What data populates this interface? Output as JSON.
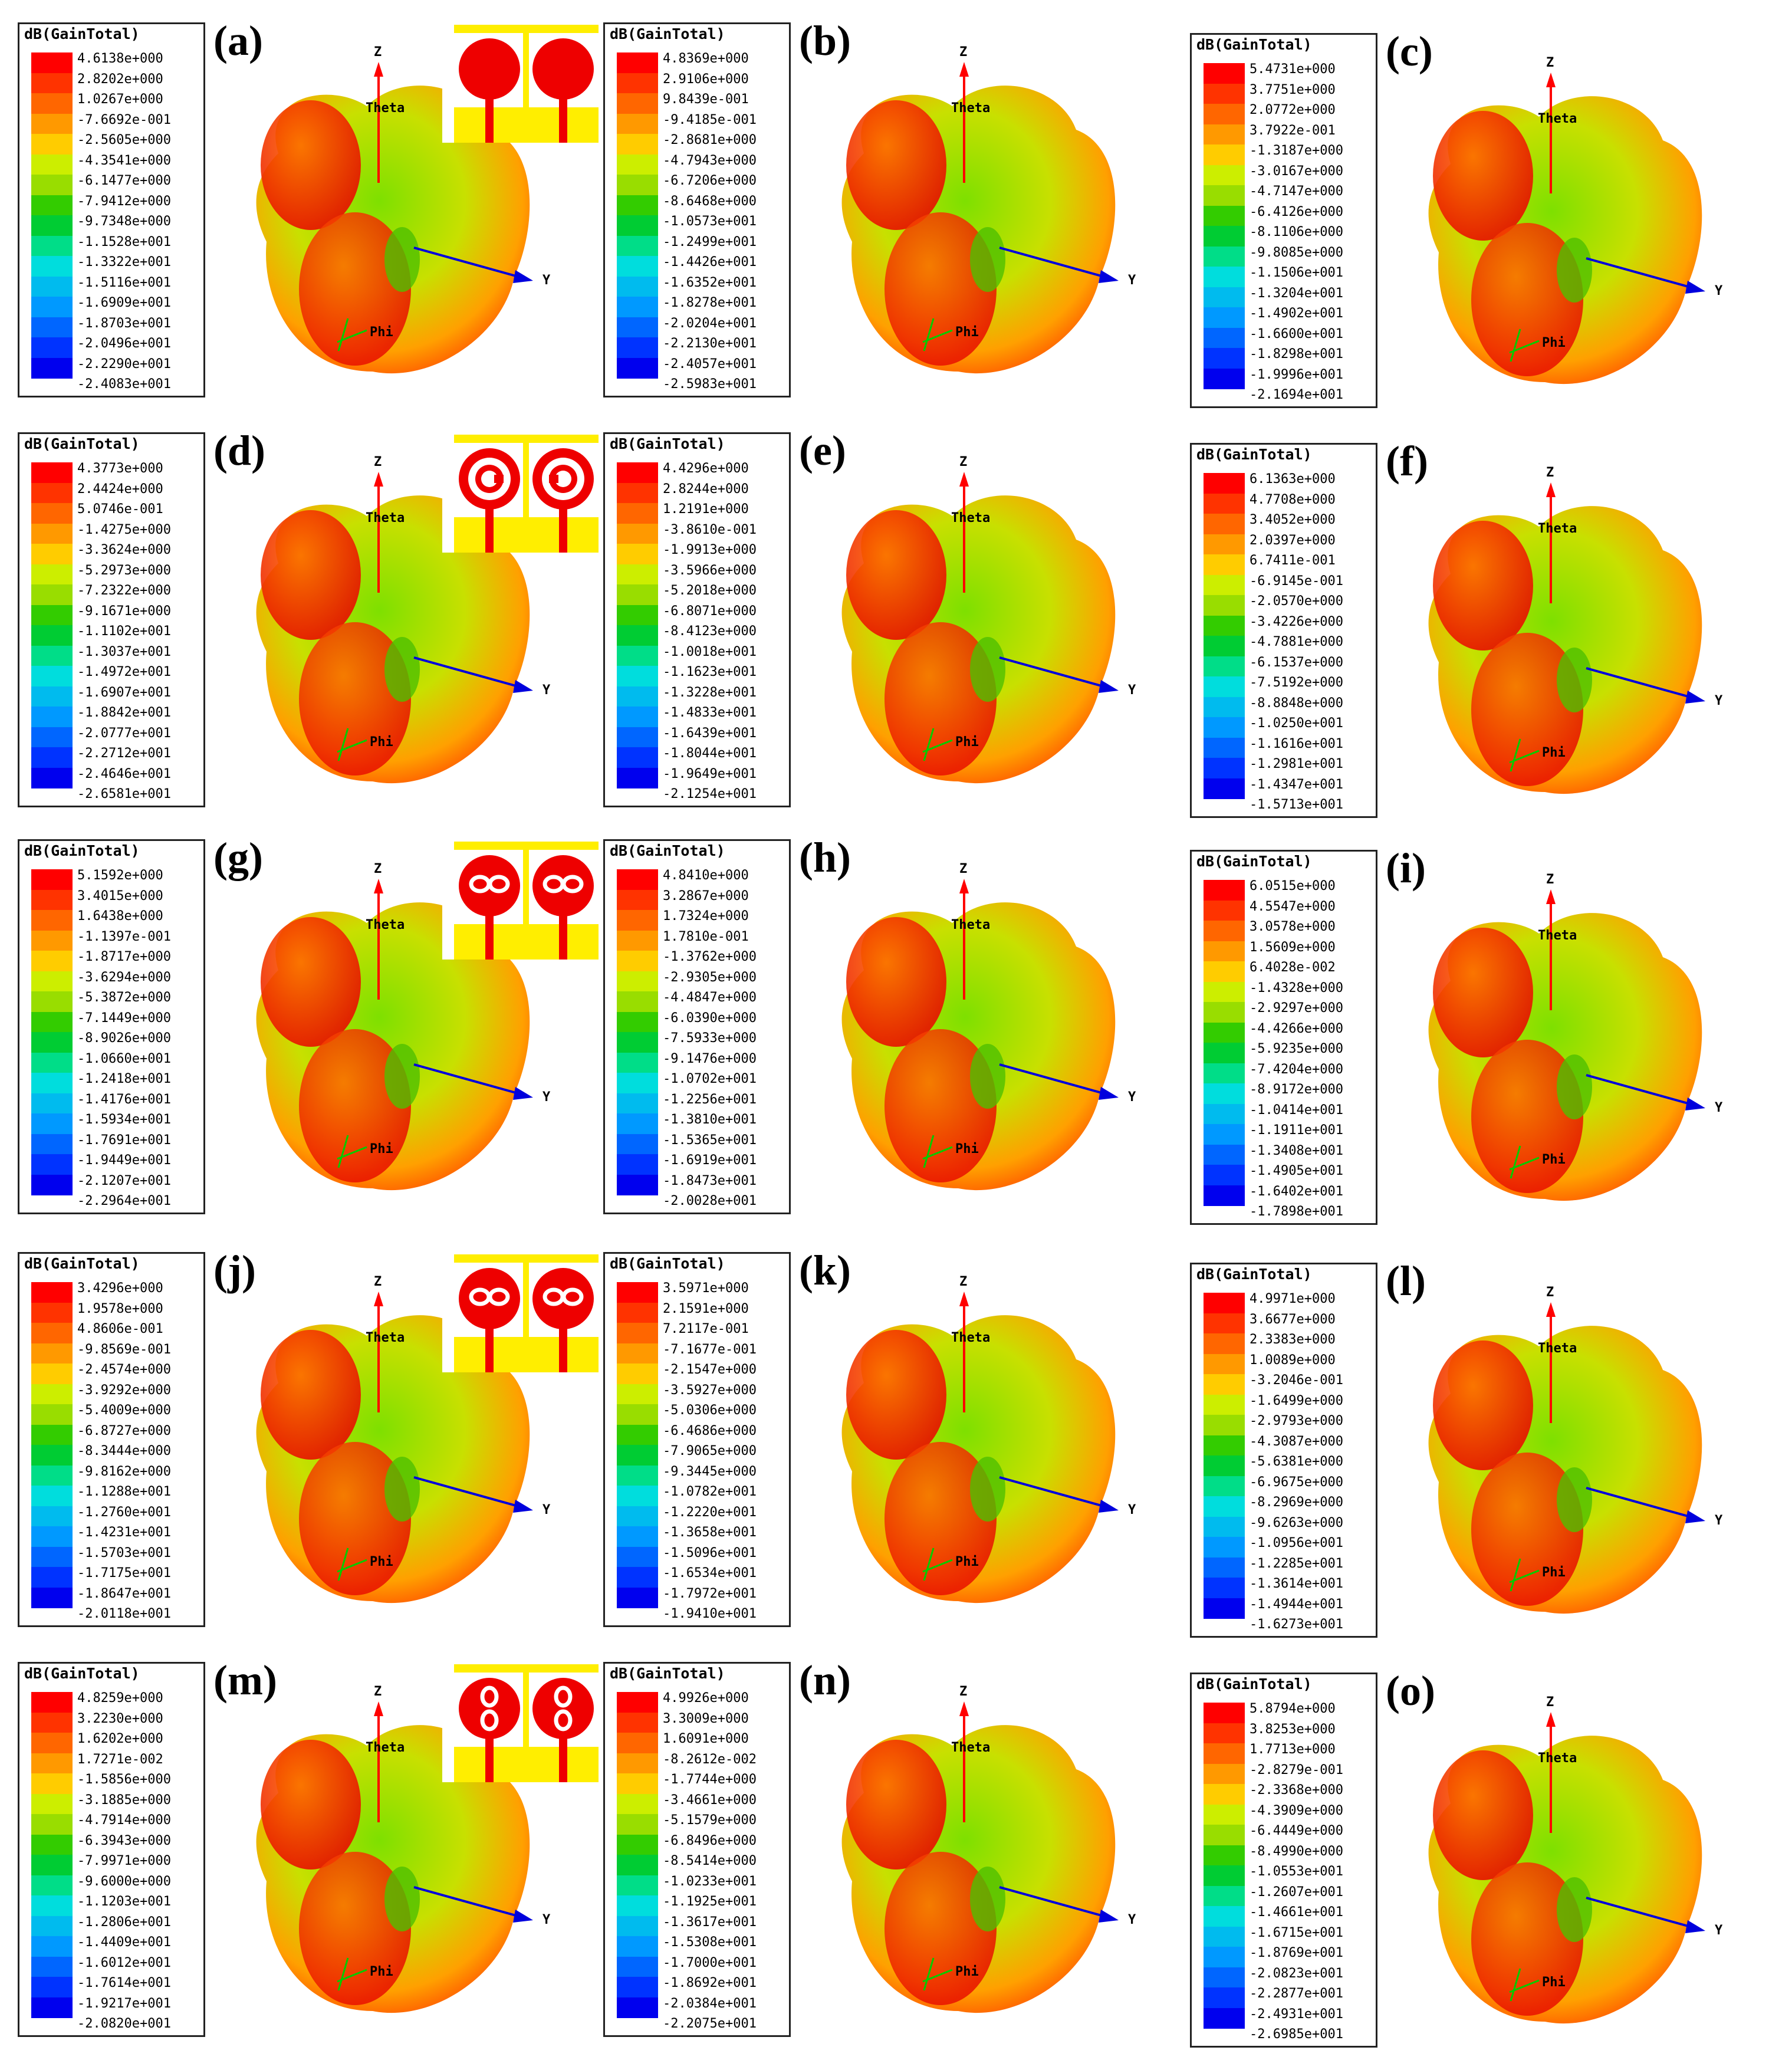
{
  "legend_title": "dB(GainTotal)",
  "axes": {
    "z": "Z",
    "y": "Y",
    "theta": "Theta",
    "phi": "Phi"
  },
  "scale_colors": [
    "#ff0000",
    "#ff3300",
    "#ff6600",
    "#ff9900",
    "#ffcc00",
    "#ccee00",
    "#99dd00",
    "#33cc00",
    "#00cc33",
    "#00dd88",
    "#00dddd",
    "#00bbee",
    "#0099ff",
    "#0066ff",
    "#0033ff",
    "#0000ee"
  ],
  "panels": [
    {
      "label": "(a)",
      "pattern": "circle",
      "values": [
        "4.6138e+000",
        "2.8202e+000",
        "1.0267e+000",
        "-7.6692e-001",
        "-2.5605e+000",
        "-4.3541e+000",
        "-6.1477e+000",
        "-7.9412e+000",
        "-9.7348e+000",
        "-1.1528e+001",
        "-1.3322e+001",
        "-1.5116e+001",
        "-1.6909e+001",
        "-1.8703e+001",
        "-2.0496e+001",
        "-2.2290e+001",
        "-2.4083e+001"
      ]
    },
    {
      "label": "(b)",
      "pattern": "",
      "values": [
        "4.8369e+000",
        "2.9106e+000",
        "9.8439e-001",
        "-9.4185e-001",
        "-2.8681e+000",
        "-4.7943e+000",
        "-6.7206e+000",
        "-8.6468e+000",
        "-1.0573e+001",
        "-1.2499e+001",
        "-1.4426e+001",
        "-1.6352e+001",
        "-1.8278e+001",
        "-2.0204e+001",
        "-2.2130e+001",
        "-2.4057e+001",
        "-2.5983e+001"
      ]
    },
    {
      "label": "(c)",
      "pattern": "",
      "values": [
        "5.4731e+000",
        "3.7751e+000",
        "2.0772e+000",
        "3.7922e-001",
        "-1.3187e+000",
        "-3.0167e+000",
        "-4.7147e+000",
        "-6.4126e+000",
        "-8.1106e+000",
        "-9.8085e+000",
        "-1.1506e+001",
        "-1.3204e+001",
        "-1.4902e+001",
        "-1.6600e+001",
        "-1.8298e+001",
        "-1.9996e+001",
        "-2.1694e+001"
      ]
    },
    {
      "label": "(d)",
      "pattern": "ring",
      "values": [
        "4.3773e+000",
        "2.4424e+000",
        "5.0746e-001",
        "-1.4275e+000",
        "-3.3624e+000",
        "-5.2973e+000",
        "-7.2322e+000",
        "-9.1671e+000",
        "-1.1102e+001",
        "-1.3037e+001",
        "-1.4972e+001",
        "-1.6907e+001",
        "-1.8842e+001",
        "-2.0777e+001",
        "-2.2712e+001",
        "-2.4646e+001",
        "-2.6581e+001"
      ]
    },
    {
      "label": "(e)",
      "pattern": "",
      "values": [
        "4.4296e+000",
        "2.8244e+000",
        "1.2191e+000",
        "-3.8610e-001",
        "-1.9913e+000",
        "-3.5966e+000",
        "-5.2018e+000",
        "-6.8071e+000",
        "-8.4123e+000",
        "-1.0018e+001",
        "-1.1623e+001",
        "-1.3228e+001",
        "-1.4833e+001",
        "-1.6439e+001",
        "-1.8044e+001",
        "-1.9649e+001",
        "-2.1254e+001"
      ]
    },
    {
      "label": "(f)",
      "pattern": "",
      "values": [
        "6.1363e+000",
        "4.7708e+000",
        "3.4052e+000",
        "2.0397e+000",
        "6.7411e-001",
        "-6.9145e-001",
        "-2.0570e+000",
        "-3.4226e+000",
        "-4.7881e+000",
        "-6.1537e+000",
        "-7.5192e+000",
        "-8.8848e+000",
        "-1.0250e+001",
        "-1.1616e+001",
        "-1.2981e+001",
        "-1.4347e+001",
        "-1.5713e+001"
      ]
    },
    {
      "label": "(g)",
      "pattern": "slot",
      "values": [
        "5.1592e+000",
        "3.4015e+000",
        "1.6438e+000",
        "-1.1397e-001",
        "-1.8717e+000",
        "-3.6294e+000",
        "-5.3872e+000",
        "-7.1449e+000",
        "-8.9026e+000",
        "-1.0660e+001",
        "-1.2418e+001",
        "-1.4176e+001",
        "-1.5934e+001",
        "-1.7691e+001",
        "-1.9449e+001",
        "-2.1207e+001",
        "-2.2964e+001"
      ]
    },
    {
      "label": "(h)",
      "pattern": "",
      "values": [
        "4.8410e+000",
        "3.2867e+000",
        "1.7324e+000",
        "1.7810e-001",
        "-1.3762e+000",
        "-2.9305e+000",
        "-4.4847e+000",
        "-6.0390e+000",
        "-7.5933e+000",
        "-9.1476e+000",
        "-1.0702e+001",
        "-1.2256e+001",
        "-1.3810e+001",
        "-1.5365e+001",
        "-1.6919e+001",
        "-1.8473e+001",
        "-2.0028e+001"
      ]
    },
    {
      "label": "(i)",
      "pattern": "",
      "values": [
        "6.0515e+000",
        "4.5547e+000",
        "3.0578e+000",
        "1.5609e+000",
        "6.4028e-002",
        "-1.4328e+000",
        "-2.9297e+000",
        "-4.4266e+000",
        "-5.9235e+000",
        "-7.4204e+000",
        "-8.9172e+000",
        "-1.0414e+001",
        "-1.1911e+001",
        "-1.3408e+001",
        "-1.4905e+001",
        "-1.6402e+001",
        "-1.7898e+001"
      ]
    },
    {
      "label": "(j)",
      "pattern": "slotgap",
      "values": [
        "3.4296e+000",
        "1.9578e+000",
        "4.8606e-001",
        "-9.8569e-001",
        "-2.4574e+000",
        "-3.9292e+000",
        "-5.4009e+000",
        "-6.8727e+000",
        "-8.3444e+000",
        "-9.8162e+000",
        "-1.1288e+001",
        "-1.2760e+001",
        "-1.4231e+001",
        "-1.5703e+001",
        "-1.7175e+001",
        "-1.8647e+001",
        "-2.0118e+001"
      ]
    },
    {
      "label": "(k)",
      "pattern": "",
      "values": [
        "3.5971e+000",
        "2.1591e+000",
        "7.2117e-001",
        "-7.1677e-001",
        "-2.1547e+000",
        "-3.5927e+000",
        "-5.0306e+000",
        "-6.4686e+000",
        "-7.9065e+000",
        "-9.3445e+000",
        "-1.0782e+001",
        "-1.2220e+001",
        "-1.3658e+001",
        "-1.5096e+001",
        "-1.6534e+001",
        "-1.7972e+001",
        "-1.9410e+001"
      ]
    },
    {
      "label": "(l)",
      "pattern": "",
      "values": [
        "4.9971e+000",
        "3.6677e+000",
        "2.3383e+000",
        "1.0089e+000",
        "-3.2046e-001",
        "-1.6499e+000",
        "-2.9793e+000",
        "-4.3087e+000",
        "-5.6381e+000",
        "-6.9675e+000",
        "-8.2969e+000",
        "-9.6263e+000",
        "-1.0956e+001",
        "-1.2285e+001",
        "-1.3614e+001",
        "-1.4944e+001",
        "-1.6273e+001"
      ]
    },
    {
      "label": "(m)",
      "pattern": "vslot",
      "values": [
        "4.8259e+000",
        "3.2230e+000",
        "1.6202e+000",
        "1.7271e-002",
        "-1.5856e+000",
        "-3.1885e+000",
        "-4.7914e+000",
        "-6.3943e+000",
        "-7.9971e+000",
        "-9.6000e+000",
        "-1.1203e+001",
        "-1.2806e+001",
        "-1.4409e+001",
        "-1.6012e+001",
        "-1.7614e+001",
        "-1.9217e+001",
        "-2.0820e+001"
      ]
    },
    {
      "label": "(n)",
      "pattern": "",
      "values": [
        "4.9926e+000",
        "3.3009e+000",
        "1.6091e+000",
        "-8.2612e-002",
        "-1.7744e+000",
        "-3.4661e+000",
        "-5.1579e+000",
        "-6.8496e+000",
        "-8.5414e+000",
        "-1.0233e+001",
        "-1.1925e+001",
        "-1.3617e+001",
        "-1.5308e+001",
        "-1.7000e+001",
        "-1.8692e+001",
        "-2.0384e+001",
        "-2.2075e+001"
      ]
    },
    {
      "label": "(o)",
      "pattern": "",
      "values": [
        "5.8794e+000",
        "3.8253e+000",
        "1.7713e+000",
        "-2.8279e-001",
        "-2.3368e+000",
        "-4.3909e+000",
        "-6.4449e+000",
        "-8.4990e+000",
        "-1.0553e+001",
        "-1.2607e+001",
        "-1.4661e+001",
        "-1.6715e+001",
        "-1.8769e+001",
        "-2.0823e+001",
        "-2.2877e+001",
        "-2.4931e+001",
        "-2.6985e+001"
      ]
    }
  ]
}
